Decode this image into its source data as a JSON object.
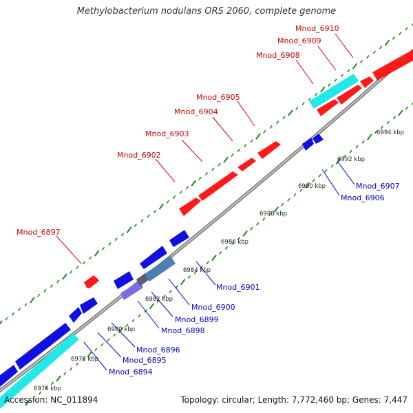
{
  "title": "Methylobacterium nodulans ORS 2060, complete genome",
  "footer": {
    "accession": "Accession: NC_011894",
    "summary": "Topology: circular; Length: 7,772,460 bp; Genes: 7,447"
  },
  "colors": {
    "forward_gene": "#ff1a1a",
    "reverse_gene": "#1010e0",
    "rna_gene": "#22e8e8",
    "forward_label": "#cc0000",
    "reverse_label": "#0000bb",
    "backbone": "#8c8c8c",
    "tick": "#1a8a1a"
  },
  "scale": {
    "unit": "kbp",
    "labels": [
      "6976 kbp",
      "6978 kbp",
      "6980 kbp",
      "6982 kbp",
      "6984 kbp",
      "6986 kbp",
      "6988 kbp",
      "6990 kbp",
      "6992 kbp",
      "6994 kbp"
    ]
  },
  "forward_labels": [
    "Mnod_6897",
    "Mnod_6902",
    "Mnod_6903",
    "Mnod_6904",
    "Mnod_6905",
    "Mnod_6908",
    "Mnod_6909",
    "Mnod_6910"
  ],
  "reverse_labels": [
    "Mnod_6894",
    "Mnod_6895",
    "Mnod_6896",
    "Mnod_6898",
    "Mnod_6899",
    "Mnod_6900",
    "Mnod_6901",
    "Mnod_6906",
    "Mnod_6907"
  ]
}
